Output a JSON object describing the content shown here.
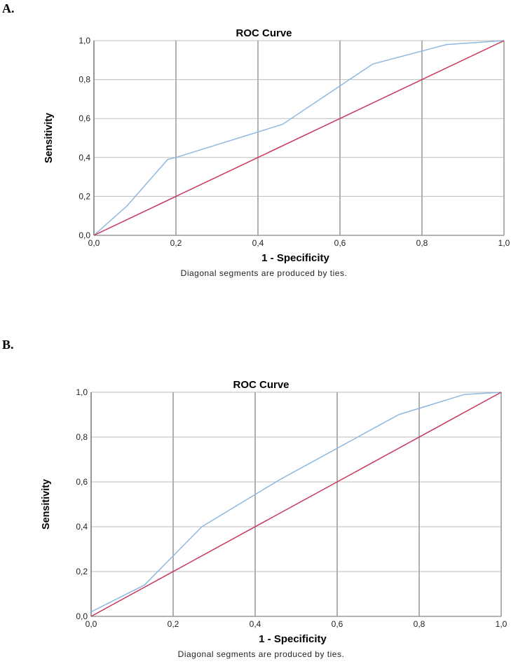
{
  "panels": [
    {
      "label": "A."
    },
    {
      "label": "B."
    }
  ],
  "colors": {
    "roc_line": "#8fb8e0",
    "reference_line": "#c8365a",
    "grid": "#bdbdbd",
    "vertical_grid": "#b0b0b0",
    "axis": "#888888"
  },
  "chart_data": [
    {
      "type": "line",
      "title": "ROC Curve",
      "xlabel": "1 - Specificity",
      "ylabel": "Sensitivity",
      "note": "Diagonal segments are produced by ties.",
      "xlim": [
        0,
        1
      ],
      "ylim": [
        0,
        1
      ],
      "x_ticks": [
        "0,0",
        "0,2",
        "0,4",
        "0,6",
        "0,8",
        "1,0"
      ],
      "y_ticks": [
        "0,0",
        "0,2",
        "0,4",
        "0,6",
        "0,8",
        "1,0"
      ],
      "grid": true,
      "series": [
        {
          "role": "roc",
          "x": [
            0,
            0.08,
            0.18,
            0.2,
            0.46,
            0.68,
            0.86,
            1.0
          ],
          "y": [
            0,
            0.15,
            0.39,
            0.4,
            0.57,
            0.88,
            0.98,
            1.0
          ]
        },
        {
          "role": "reference",
          "x": [
            0,
            1
          ],
          "y": [
            0,
            1
          ]
        }
      ]
    },
    {
      "type": "line",
      "title": "ROC Curve",
      "xlabel": "1 - Specificity",
      "ylabel": "Sensitivity",
      "note": "Diagonal segments are produced by ties.",
      "xlim": [
        0,
        1
      ],
      "ylim": [
        0,
        1
      ],
      "x_ticks": [
        "0,0",
        "0,2",
        "0,4",
        "0,6",
        "0,8",
        "1,0"
      ],
      "y_ticks": [
        "0,0",
        "0,2",
        "0,4",
        "0,6",
        "0,8",
        "1,0"
      ],
      "grid": true,
      "series": [
        {
          "role": "roc",
          "x": [
            0,
            0.13,
            0.27,
            0.46,
            0.75,
            0.91,
            1.0
          ],
          "y": [
            0.02,
            0.14,
            0.4,
            0.61,
            0.9,
            0.99,
            1.0
          ]
        },
        {
          "role": "reference",
          "x": [
            0,
            1
          ],
          "y": [
            0,
            1
          ]
        }
      ]
    }
  ]
}
